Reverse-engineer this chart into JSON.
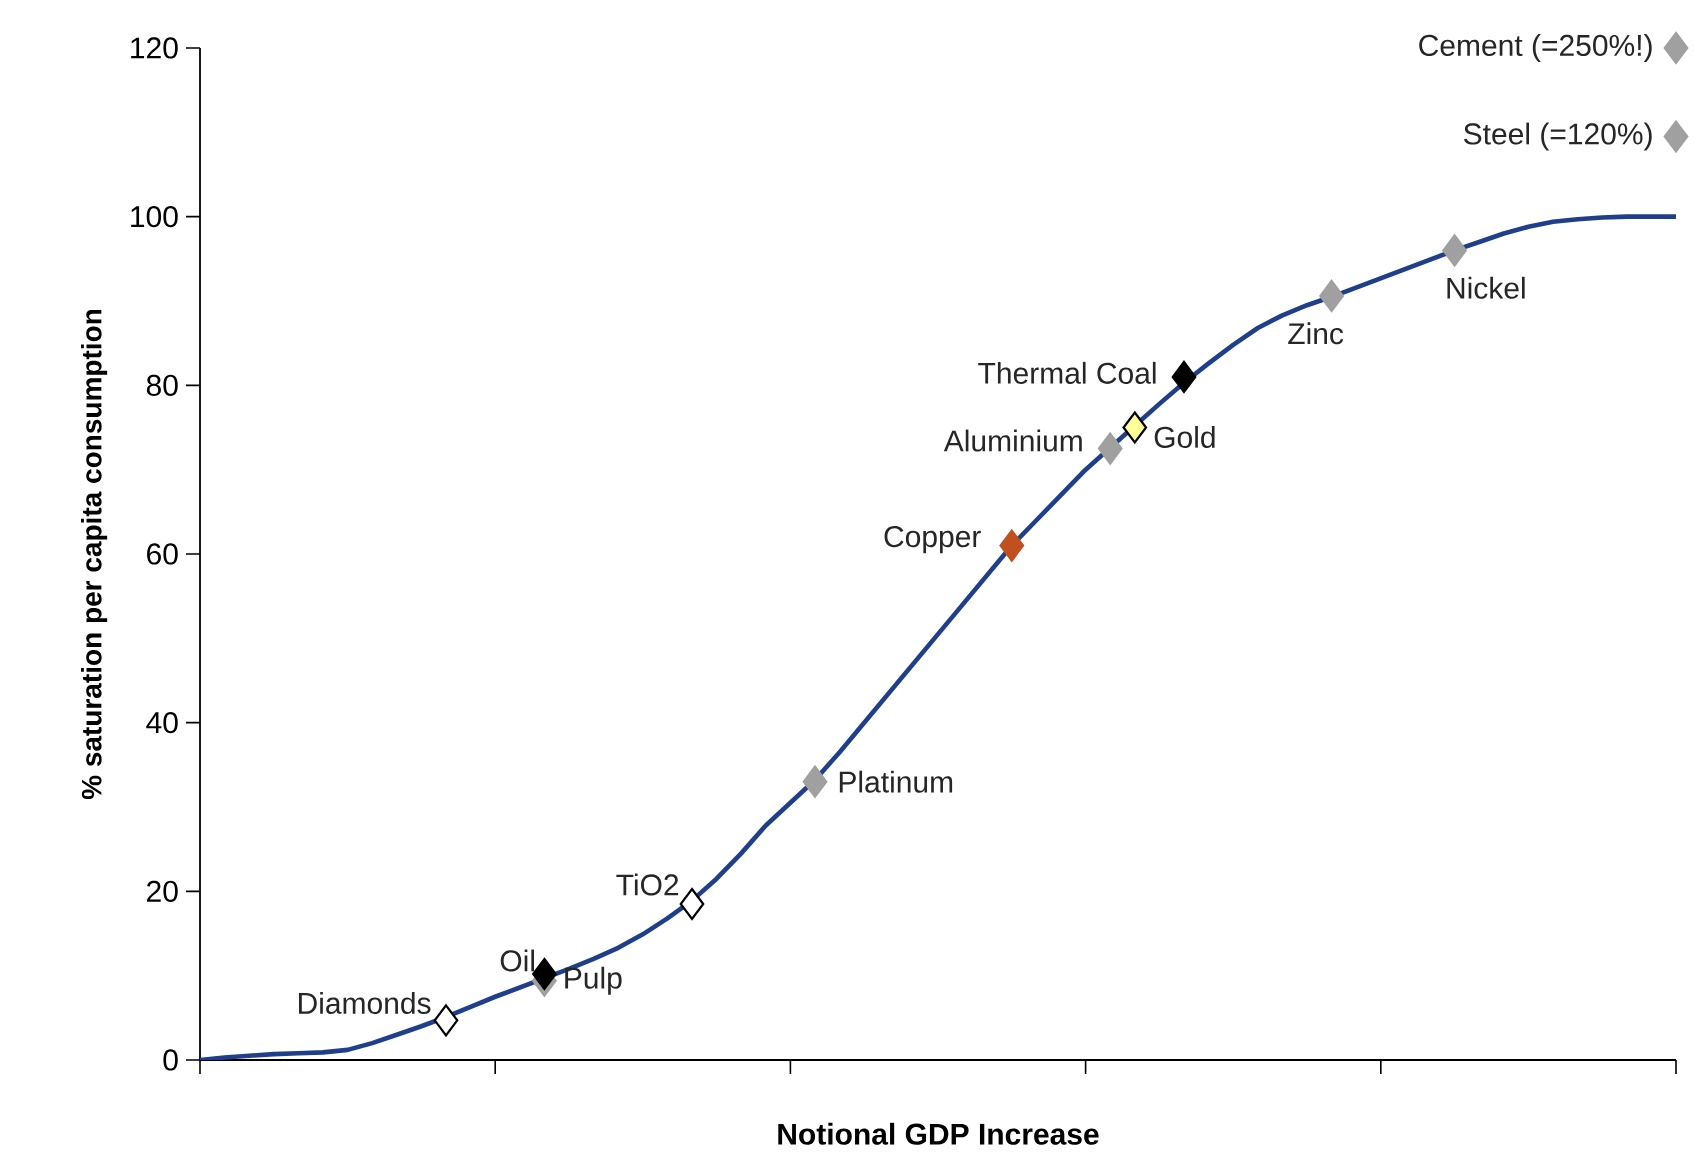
{
  "chart_data": {
    "type": "line",
    "xlabel": "Notional GDP Increase",
    "ylabel": "% saturation per capita consumption",
    "ylim": [
      0,
      120
    ],
    "yticks": [
      0,
      20,
      40,
      60,
      80,
      100,
      120
    ],
    "grid": false,
    "tick_labels": "y",
    "categories": [
      null,
      null,
      null,
      null,
      null,
      null,
      null,
      null,
      null,
      null,
      null,
      null,
      null,
      null,
      null,
      null,
      null,
      null,
      null,
      null,
      null,
      null,
      null,
      null,
      null,
      null,
      null,
      null,
      null,
      null,
      null,
      null,
      null,
      null,
      null,
      null,
      null,
      null,
      null,
      null,
      null,
      null,
      null,
      null,
      null,
      null,
      null,
      null,
      null,
      null,
      null,
      null,
      null,
      null,
      null,
      null,
      null,
      null,
      null,
      null,
      null
    ],
    "series": [
      {
        "color": "#1f3f8a",
        "marker": "none",
        "line_style": "solid",
        "values": [
          0,
          0.3,
          0.5,
          0.7,
          0.8,
          0.9,
          1.2,
          2,
          3,
          4,
          5.1,
          6.3,
          7.5,
          8.6,
          9.7,
          10.8,
          12,
          13.3,
          14.9,
          16.8,
          18.9,
          21.5,
          24.5,
          27.8,
          30.5,
          33.2,
          36.5,
          40,
          43.5,
          47,
          50.5,
          54,
          57.5,
          61,
          64,
          67,
          70,
          72.6,
          75.2,
          77.8,
          80.3,
          82.6,
          84.8,
          86.8,
          88.3,
          89.5,
          90.5,
          91.6,
          92.7,
          93.8,
          94.9,
          96,
          97,
          98,
          98.8,
          99.4,
          99.7,
          99.9,
          100,
          100,
          100
        ]
      },
      {
        "type": "scatter",
        "marker": "diamond",
        "values": [
          null,
          null,
          null,
          null,
          null,
          null,
          null,
          null,
          null,
          null,
          null,
          null,
          null,
          null,
          9.4,
          null,
          null,
          null,
          null,
          null,
          null,
          null,
          null,
          null,
          null,
          null,
          null,
          null,
          null,
          null,
          null,
          null,
          null,
          null,
          null,
          null,
          null,
          null,
          null,
          null,
          null,
          null,
          null,
          null,
          null,
          null,
          null,
          null,
          null,
          null,
          null,
          null,
          null,
          null,
          null,
          null,
          null,
          null,
          null,
          null,
          120
        ],
        "colors": [
          null,
          null,
          null,
          null,
          null,
          null,
          null,
          null,
          null,
          null,
          null,
          null,
          null,
          null,
          "#a0a0a0",
          null,
          null,
          null,
          null,
          null,
          null,
          null,
          null,
          null,
          null,
          null,
          null,
          null,
          null,
          null,
          null,
          null,
          null,
          null,
          null,
          null,
          null,
          null,
          null,
          null,
          null,
          null,
          null,
          null,
          null,
          null,
          null,
          null,
          null,
          null,
          null,
          null,
          null,
          null,
          null,
          null,
          null,
          null,
          null,
          null,
          "#a0a0a0"
        ]
      },
      {
        "type": "scatter",
        "marker": "diamond",
        "values": [
          null,
          null,
          null,
          null,
          null,
          null,
          null,
          null,
          null,
          null,
          4.7,
          null,
          null,
          null,
          10.2,
          null,
          null,
          null,
          null,
          null,
          18.5,
          null,
          null,
          null,
          null,
          33,
          null,
          null,
          null,
          null,
          null,
          null,
          null,
          61,
          null,
          null,
          null,
          72.5,
          75,
          null,
          81,
          null,
          null,
          null,
          null,
          null,
          90.6,
          null,
          null,
          null,
          null,
          96,
          null,
          null,
          null,
          null,
          null,
          null,
          null,
          null,
          109.5
        ],
        "colors": [
          null,
          null,
          null,
          null,
          null,
          null,
          null,
          null,
          null,
          null,
          "#ffffff",
          null,
          null,
          null,
          "#000000",
          null,
          null,
          null,
          null,
          null,
          "#ffffff",
          null,
          null,
          null,
          null,
          "#a0a0a0",
          null,
          null,
          null,
          null,
          null,
          null,
          null,
          "#c0501f",
          null,
          null,
          null,
          "#a0a0a0",
          "#ffff99",
          null,
          "#000000",
          null,
          null,
          null,
          null,
          null,
          "#a0a0a0",
          null,
          null,
          null,
          null,
          "#a0a0a0",
          null,
          null,
          null,
          null,
          null,
          null,
          null,
          null,
          "#a0a0a0"
        ]
      }
    ],
    "annotations": [
      "Pulp",
      "Cement (=250%!)",
      "Diamonds",
      "Oil",
      "TiO2",
      "Platinum",
      "Copper",
      "Aluminium",
      "Gold",
      "Thermal Coal",
      "Zinc",
      "Nickel",
      "Steel (=120%)"
    ]
  }
}
